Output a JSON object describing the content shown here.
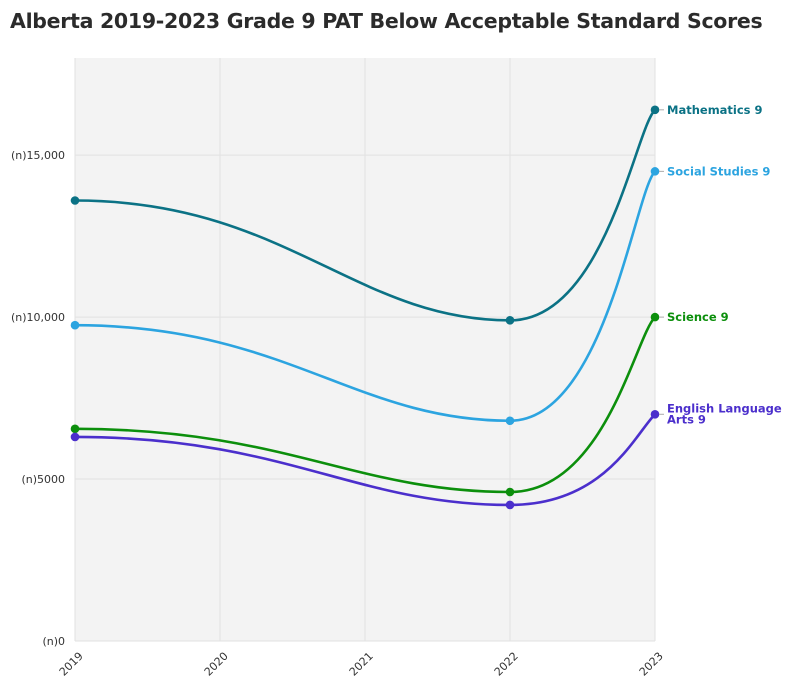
{
  "title": "Alberta 2019-2023 Grade 9 PAT Below Acceptable Standard Scores",
  "chart_data": {
    "type": "line",
    "title": "Alberta 2019-2023 Grade 9 PAT Below Acceptable Standard Scores",
    "xlabel": "",
    "ylabel": "",
    "x": [
      2019,
      2022,
      2023
    ],
    "x_ticks": [
      "2019",
      "2020",
      "2021",
      "2022",
      "2023"
    ],
    "xlim": [
      2019,
      2023
    ],
    "ylim": [
      0,
      18000
    ],
    "y_ticks": [
      {
        "value": 0,
        "label": "(n)0"
      },
      {
        "value": 5000,
        "label": "(n)5000"
      },
      {
        "value": 10000,
        "label": "(n)10,000"
      },
      {
        "value": 15000,
        "label": "(n)15,000"
      }
    ],
    "grid": true,
    "series": [
      {
        "name": "Mathematics 9",
        "label": "Mathematics 9",
        "color": "#0b7285",
        "values": [
          13600,
          9900,
          16400
        ]
      },
      {
        "name": "Social Studies 9",
        "label": "Social Studies 9",
        "color": "#2ca4e0",
        "values": [
          9750,
          6800,
          14500
        ]
      },
      {
        "name": "Science 9",
        "label": "Science 9",
        "color": "#0c8f0c",
        "values": [
          6550,
          4600,
          10000
        ]
      },
      {
        "name": "English Language Arts 9",
        "label": "English Language\nArts 9",
        "color": "#4b2fcc",
        "values": [
          6300,
          4200,
          7000
        ]
      }
    ]
  }
}
